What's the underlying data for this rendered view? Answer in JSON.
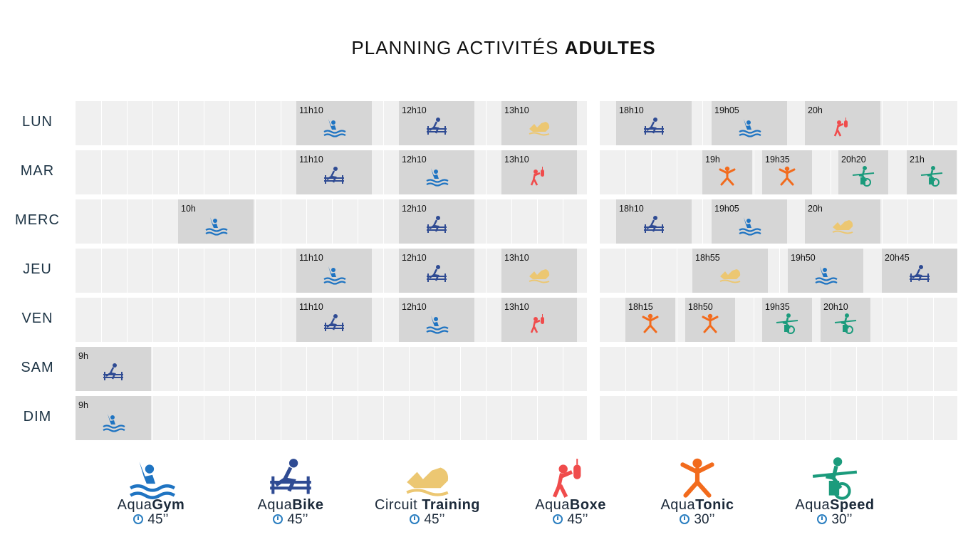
{
  "title": {
    "prefix": "PLANNING ACTIVITÉS",
    "bold": "ADULTES"
  },
  "colors": {
    "gym": "#1f74c2",
    "bike": "#2f4b93",
    "circuit": "#ecc772",
    "boxe": "#f04c4c",
    "tonic": "#f26b1d",
    "speed": "#1b9b7c",
    "cell_bg": "#f0f0f0",
    "slot_bg": "#d6d6d6"
  },
  "days": [
    {
      "label": "LUN",
      "slots": [
        {
          "time": "11h10",
          "activity": "gym"
        },
        {
          "time": "12h10",
          "activity": "bike"
        },
        {
          "time": "13h10",
          "activity": "circuit"
        },
        {
          "time": "18h10",
          "activity": "bike"
        },
        {
          "time": "19h05",
          "activity": "gym"
        },
        {
          "time": "20h",
          "activity": "boxe"
        }
      ]
    },
    {
      "label": "MAR",
      "slots": [
        {
          "time": "11h10",
          "activity": "bike"
        },
        {
          "time": "12h10",
          "activity": "gym"
        },
        {
          "time": "13h10",
          "activity": "boxe"
        },
        {
          "time": "19h",
          "activity": "tonic"
        },
        {
          "time": "19h35",
          "activity": "tonic"
        },
        {
          "time": "20h20",
          "activity": "speed"
        },
        {
          "time": "21h",
          "activity": "speed"
        }
      ]
    },
    {
      "label": "MERC",
      "slots": [
        {
          "time": "10h",
          "activity": "gym"
        },
        {
          "time": "12h10",
          "activity": "bike"
        },
        {
          "time": "18h10",
          "activity": "bike"
        },
        {
          "time": "19h05",
          "activity": "gym"
        },
        {
          "time": "20h",
          "activity": "circuit"
        }
      ]
    },
    {
      "label": "JEU",
      "slots": [
        {
          "time": "11h10",
          "activity": "gym"
        },
        {
          "time": "12h10",
          "activity": "bike"
        },
        {
          "time": "13h10",
          "activity": "circuit"
        },
        {
          "time": "18h55",
          "activity": "circuit"
        },
        {
          "time": "19h50",
          "activity": "gym"
        },
        {
          "time": "20h45",
          "activity": "bike"
        }
      ]
    },
    {
      "label": "VEN",
      "slots": [
        {
          "time": "11h10",
          "activity": "bike"
        },
        {
          "time": "12h10",
          "activity": "gym"
        },
        {
          "time": "13h10",
          "activity": "boxe"
        },
        {
          "time": "18h15",
          "activity": "tonic"
        },
        {
          "time": "18h50",
          "activity": "tonic"
        },
        {
          "time": "19h35",
          "activity": "speed"
        },
        {
          "time": "20h10",
          "activity": "speed"
        }
      ]
    },
    {
      "label": "SAM",
      "slots": [
        {
          "time": "9h",
          "activity": "bike"
        }
      ]
    },
    {
      "label": "DIM",
      "slots": [
        {
          "time": "9h",
          "activity": "gym"
        }
      ]
    }
  ],
  "legend": [
    {
      "activity": "gym",
      "prefix": "Aqua",
      "bold": "Gym",
      "duration": "45’’"
    },
    {
      "activity": "bike",
      "prefix": "Aqua",
      "bold": "Bike",
      "duration": "45’’"
    },
    {
      "activity": "circuit",
      "prefix": "Circuit ",
      "bold": "Training",
      "duration": "45’’"
    },
    {
      "activity": "boxe",
      "prefix": "Aqua",
      "bold": "Boxe",
      "duration": "45’’"
    },
    {
      "activity": "tonic",
      "prefix": "Aqua",
      "bold": "Tonic",
      "duration": "30’’"
    },
    {
      "activity": "speed",
      "prefix": "Aqua",
      "bold": "Speed",
      "duration": "30’’"
    }
  ]
}
